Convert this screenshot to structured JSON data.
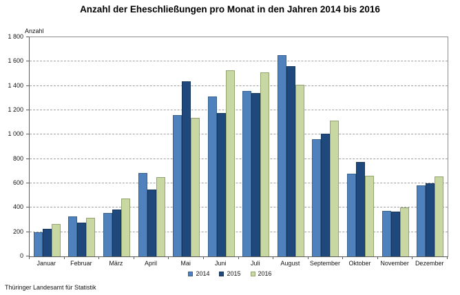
{
  "title": "Anzahl der Eheschließungen pro Monat in den Jahren 2014 bis 2016",
  "source": "Thüringer Landesamt für Statistik",
  "chart_data": {
    "type": "bar",
    "title": "Anzahl der Eheschließungen pro Monat in den Jahren 2014 bis 2016",
    "xlabel": "",
    "ylabel": "Anzahl",
    "ylim": [
      0,
      1800
    ],
    "y_tick_step": 200,
    "y_tick_labels": [
      "0",
      "200",
      "400",
      "600",
      "800",
      "1 000",
      "1 200",
      "1 400",
      "1 600",
      "1 800"
    ],
    "grid": "horizontal-dashed",
    "legend_position": "bottom-center",
    "categories": [
      "Januar",
      "Februar",
      "März",
      "April",
      "Mai",
      "Juni",
      "Juli",
      "August",
      "September",
      "Oktober",
      "November",
      "Dezember"
    ],
    "series": [
      {
        "name": "2014",
        "fill": "#4F81BD",
        "border": "#36618E",
        "values": [
          200,
          330,
          355,
          685,
          1160,
          1315,
          1360,
          1655,
          960,
          680,
          375,
          585
        ]
      },
      {
        "name": "2015",
        "fill": "#1F497D",
        "border": "#16365C",
        "values": [
          225,
          280,
          385,
          550,
          1440,
          1180,
          1340,
          1560,
          1005,
          775,
          370,
          600
        ]
      },
      {
        "name": "2016",
        "fill": "#C9D8A3",
        "border": "#93A470",
        "values": [
          265,
          315,
          475,
          650,
          1140,
          1530,
          1510,
          1410,
          1115,
          660,
          400,
          655
        ]
      }
    ]
  }
}
